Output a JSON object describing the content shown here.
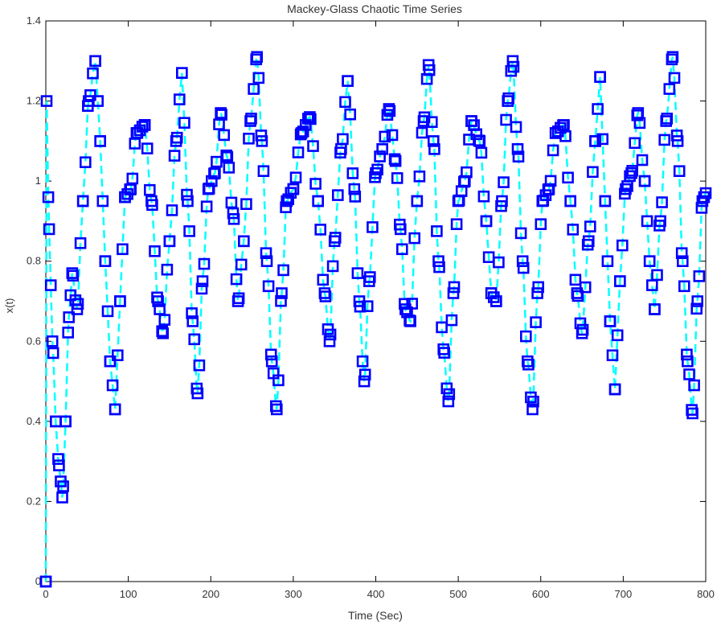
{
  "chart_data": {
    "type": "line",
    "title": "Mackey-Glass Chaotic Time Series",
    "xlabel": "Time (Sec)",
    "ylabel": "x(t)",
    "xlim": [
      0,
      800
    ],
    "ylim": [
      0,
      1.4
    ],
    "xticks": [
      "0",
      "100",
      "200",
      "300",
      "400",
      "500",
      "600",
      "700",
      "800"
    ],
    "yticks": [
      "0",
      "0.2",
      "0.4",
      "0.6",
      "0.8",
      "1",
      "1.2",
      "1.4"
    ],
    "grid": false,
    "series": [
      {
        "marker": "square",
        "marker_color": "#0000ff",
        "line_style": "dashed",
        "line_color": "#00ffff",
        "sample_step": 3,
        "keyframes": [
          [
            0,
            0.0
          ],
          [
            1,
            1.2
          ],
          [
            4,
            0.88
          ],
          [
            8,
            0.6
          ],
          [
            12,
            0.4
          ],
          [
            16,
            0.29
          ],
          [
            20,
            0.21
          ],
          [
            24,
            0.4
          ],
          [
            28,
            0.66
          ],
          [
            32,
            0.77
          ],
          [
            38,
            0.68
          ],
          [
            45,
            0.95
          ],
          [
            52,
            1.2
          ],
          [
            60,
            1.3
          ],
          [
            66,
            1.1
          ],
          [
            72,
            0.8
          ],
          [
            78,
            0.55
          ],
          [
            84,
            0.43
          ],
          [
            90,
            0.7
          ],
          [
            96,
            0.96
          ],
          [
            103,
            0.98
          ],
          [
            110,
            1.12
          ],
          [
            120,
            1.14
          ],
          [
            128,
            0.95
          ],
          [
            136,
            0.7
          ],
          [
            142,
            0.62
          ],
          [
            150,
            0.85
          ],
          [
            158,
            1.1
          ],
          [
            165,
            1.27
          ],
          [
            172,
            0.95
          ],
          [
            178,
            0.65
          ],
          [
            184,
            0.47
          ],
          [
            190,
            0.75
          ],
          [
            197,
            0.98
          ],
          [
            205,
            1.02
          ],
          [
            212,
            1.17
          ],
          [
            220,
            1.06
          ],
          [
            227,
            0.92
          ],
          [
            233,
            0.7
          ],
          [
            240,
            0.85
          ],
          [
            248,
            1.15
          ],
          [
            256,
            1.31
          ],
          [
            262,
            1.1
          ],
          [
            268,
            0.8
          ],
          [
            274,
            0.55
          ],
          [
            280,
            0.43
          ],
          [
            286,
            0.72
          ],
          [
            292,
            0.95
          ],
          [
            300,
            0.98
          ],
          [
            310,
            1.12
          ],
          [
            320,
            1.16
          ],
          [
            330,
            0.95
          ],
          [
            338,
            0.72
          ],
          [
            344,
            0.6
          ],
          [
            350,
            0.85
          ],
          [
            358,
            1.08
          ],
          [
            366,
            1.25
          ],
          [
            374,
            0.98
          ],
          [
            380,
            0.7
          ],
          [
            386,
            0.5
          ],
          [
            392,
            0.75
          ],
          [
            400,
            1.02
          ],
          [
            408,
            1.08
          ],
          [
            416,
            1.18
          ],
          [
            424,
            1.05
          ],
          [
            430,
            0.88
          ],
          [
            436,
            0.68
          ],
          [
            442,
            0.65
          ],
          [
            450,
            0.95
          ],
          [
            458,
            1.15
          ],
          [
            464,
            1.29
          ],
          [
            470,
            1.1
          ],
          [
            476,
            0.8
          ],
          [
            482,
            0.58
          ],
          [
            488,
            0.45
          ],
          [
            494,
            0.72
          ],
          [
            500,
            0.95
          ],
          [
            508,
            1.0
          ],
          [
            516,
            1.15
          ],
          [
            526,
            1.1
          ],
          [
            534,
            0.9
          ],
          [
            540,
            0.72
          ],
          [
            546,
            0.7
          ],
          [
            553,
            0.95
          ],
          [
            560,
            1.2
          ],
          [
            566,
            1.3
          ],
          [
            572,
            1.08
          ],
          [
            578,
            0.8
          ],
          [
            584,
            0.55
          ],
          [
            590,
            0.43
          ],
          [
            596,
            0.72
          ],
          [
            602,
            0.95
          ],
          [
            610,
            0.98
          ],
          [
            618,
            1.12
          ],
          [
            628,
            1.14
          ],
          [
            636,
            0.95
          ],
          [
            644,
            0.72
          ],
          [
            650,
            0.62
          ],
          [
            658,
            0.85
          ],
          [
            666,
            1.1
          ],
          [
            672,
            1.26
          ],
          [
            678,
            0.95
          ],
          [
            684,
            0.65
          ],
          [
            690,
            0.48
          ],
          [
            696,
            0.75
          ],
          [
            703,
            0.98
          ],
          [
            710,
            1.02
          ],
          [
            718,
            1.17
          ],
          [
            726,
            1.0
          ],
          [
            732,
            0.8
          ],
          [
            738,
            0.68
          ],
          [
            745,
            0.9
          ],
          [
            752,
            1.15
          ],
          [
            760,
            1.31
          ],
          [
            766,
            1.1
          ],
          [
            772,
            0.8
          ],
          [
            778,
            0.55
          ],
          [
            784,
            0.42
          ],
          [
            790,
            0.7
          ],
          [
            796,
            0.95
          ],
          [
            800,
            0.97
          ]
        ]
      }
    ]
  }
}
